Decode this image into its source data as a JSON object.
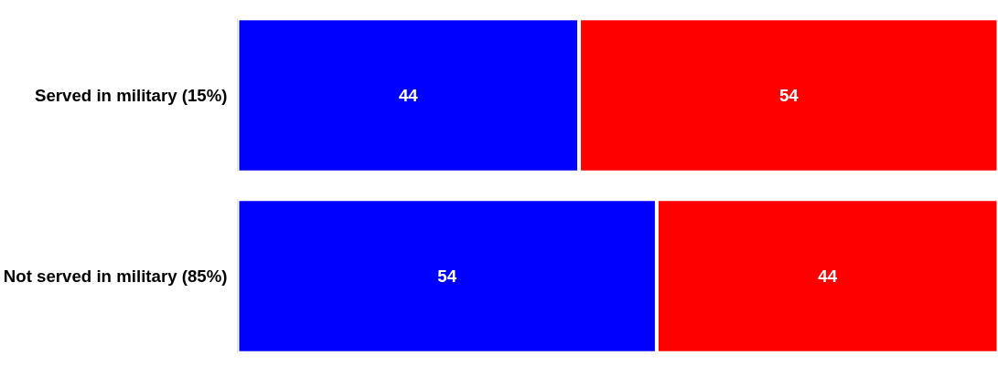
{
  "chart_data": {
    "type": "bar",
    "orientation": "horizontal",
    "stacked": true,
    "data_labels": true,
    "tick_labels": "y",
    "grid": false,
    "categories": [
      "Served in military (15%)",
      "Not served in military (85%)"
    ],
    "xlim": [
      0,
      98
    ],
    "series": [
      {
        "color": "#0000ff",
        "values": [
          44,
          54
        ]
      },
      {
        "color": "#ff0000",
        "values": [
          54,
          44
        ]
      }
    ]
  }
}
